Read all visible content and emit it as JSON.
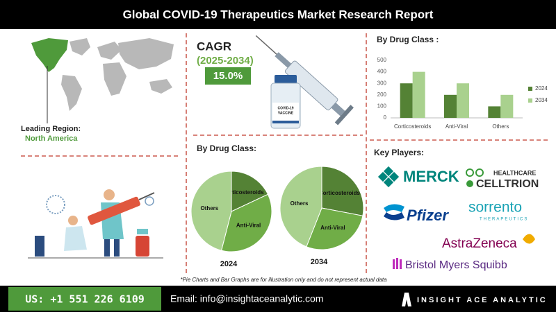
{
  "header": {
    "title": "Global COVID-19 Therapeutics Market Research Report"
  },
  "leading_region": {
    "label": "Leading Region:",
    "value": "North America"
  },
  "cagr": {
    "label": "CAGR",
    "period": "(2025-2034)",
    "value": "15.0%",
    "vial_texts": [
      "COVID-19",
      "VACCINE"
    ]
  },
  "pie_section": {
    "title": "By Drug Class:"
  },
  "chart_data": [
    {
      "type": "bar",
      "title": "By Drug Class :",
      "categories": [
        "Corticosteroids",
        "Anti-Viral",
        "Others"
      ],
      "series": [
        {
          "name": "2024",
          "color": "#548235",
          "values": [
            300,
            200,
            100
          ]
        },
        {
          "name": "2034",
          "color": "#a9d18e",
          "values": [
            400,
            300,
            200
          ]
        }
      ],
      "ylim": [
        0,
        500
      ],
      "yticks": [
        0,
        100,
        200,
        300,
        400,
        500
      ],
      "grid": false,
      "legend": "right"
    },
    {
      "type": "pie",
      "label": "2024",
      "categories": [
        "Corticosteroids",
        "Anti-Viral",
        "Others"
      ],
      "values": [
        18,
        36,
        46
      ],
      "colors": [
        "#548235",
        "#70ad47",
        "#a9d18e"
      ]
    },
    {
      "type": "pie",
      "label": "2034",
      "categories": [
        "Corticosteroids",
        "Anti-Viral",
        "Others"
      ],
      "values": [
        28,
        28,
        44
      ],
      "colors": [
        "#548235",
        "#70ad47",
        "#a9d18e"
      ]
    }
  ],
  "key_players": {
    "title": "Key Players:",
    "logos": [
      "MERCK",
      "HEALTHCARE",
      "CELLTRION",
      "Pfizer",
      "sorrento",
      "THERAPEUTICS",
      "AstraZeneca",
      "Bristol Myers Squibb"
    ]
  },
  "note": "*Pie Charts and Bar Graphs are for illustration only and do not represent actual data",
  "footer": {
    "phone": "US: +1 551 226 6109",
    "email": "Email: info@insightaceanalytic.com",
    "brand": "INSIGHT ACE ANALYTIC"
  }
}
